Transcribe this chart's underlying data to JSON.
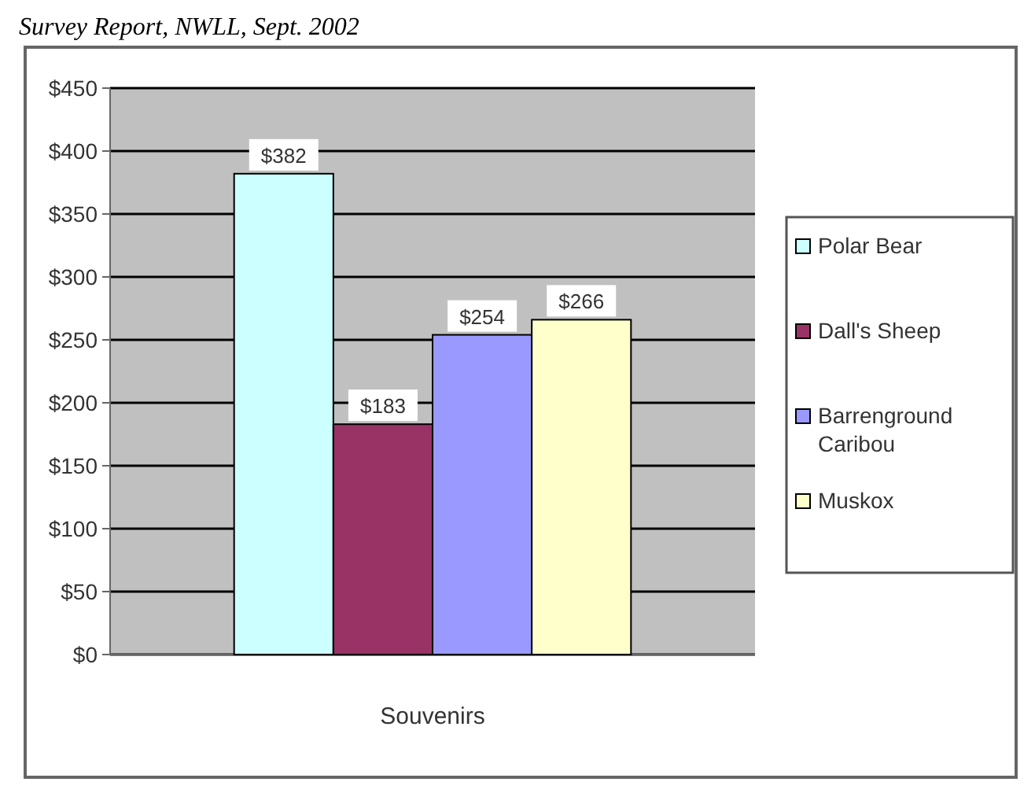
{
  "chart_data": {
    "type": "bar",
    "title": "Survey Report, NWLL, Sept. 2002",
    "xlabel": "Souvenirs",
    "categories": [
      null
    ],
    "series": [
      {
        "name": "Polar Bear",
        "color": "#ccffff",
        "values": [
          382
        ],
        "value_labels": [
          "$382"
        ]
      },
      {
        "name": "Dall's Sheep",
        "color": "#993366",
        "values": [
          183
        ],
        "value_labels": [
          "$183"
        ]
      },
      {
        "name": "Barrenground Caribou",
        "color": "#9999ff",
        "values": [
          254
        ],
        "value_labels": [
          "$254"
        ]
      },
      {
        "name": "Muskox",
        "color": "#ffffcc",
        "values": [
          266
        ],
        "value_labels": [
          "$266"
        ]
      }
    ],
    "ylim": [
      0,
      450
    ],
    "yticks": [
      {
        "value": 0,
        "label": "$0"
      },
      {
        "value": 50,
        "label": "$50"
      },
      {
        "value": 100,
        "label": "$100"
      },
      {
        "value": 150,
        "label": "$150"
      },
      {
        "value": 200,
        "label": "$200"
      },
      {
        "value": 250,
        "label": "$250"
      },
      {
        "value": 300,
        "label": "$300"
      },
      {
        "value": 350,
        "label": "$350"
      },
      {
        "value": 400,
        "label": "$400"
      },
      {
        "value": 450,
        "label": "$450"
      }
    ],
    "grid": "y",
    "legend": "right"
  }
}
